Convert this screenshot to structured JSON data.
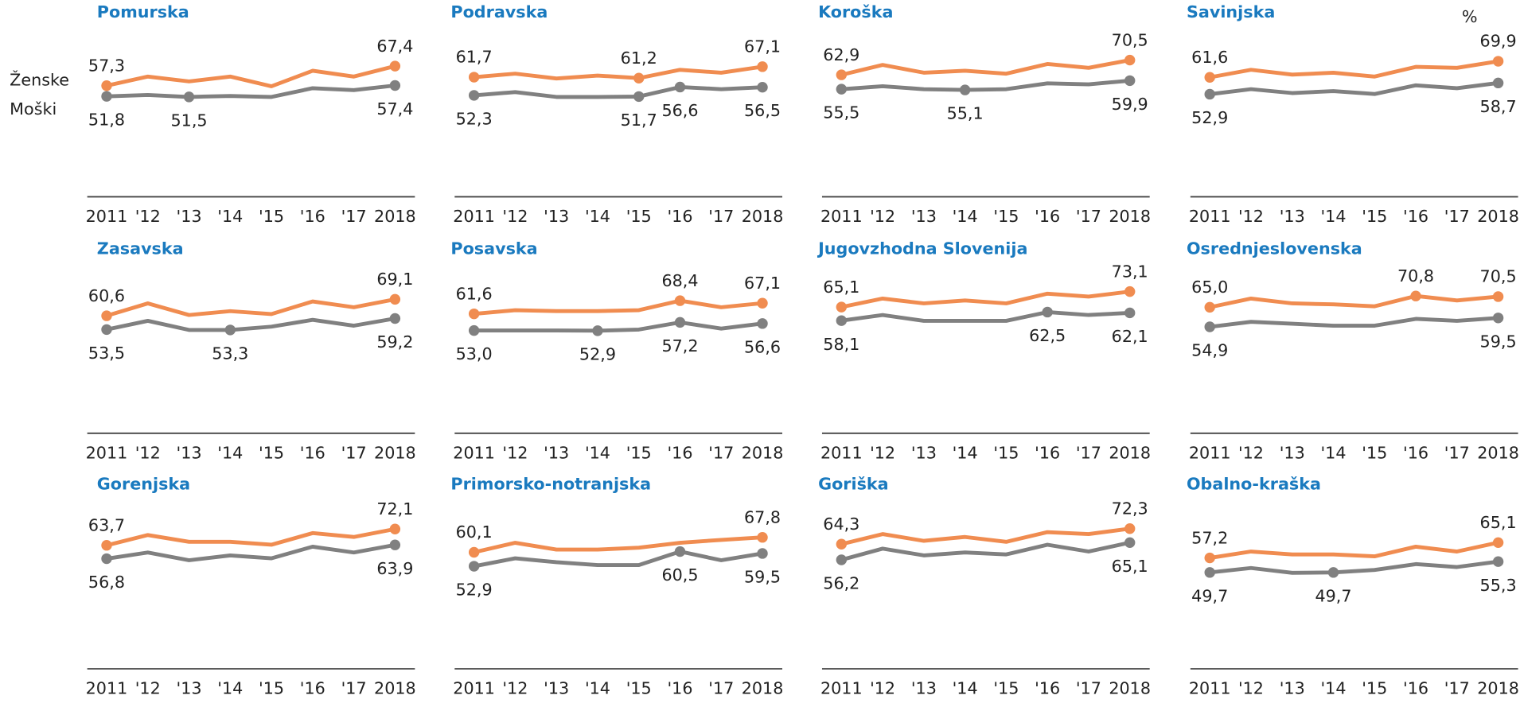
{
  "unit": "%",
  "chart_data": [
    {
      "type": "line",
      "title": "Pomurska",
      "categories": [
        "2011",
        "'12",
        "'13",
        "'14",
        "'15",
        "'16",
        "'17",
        "2018"
      ],
      "ylim": [
        0,
        90
      ],
      "series": [
        {
          "name": "Ženske",
          "color": "#f08c50",
          "values": [
            57.3,
            62,
            59.5,
            62,
            57,
            65,
            62,
            67.4
          ],
          "value_labels": [
            "57,3",
            null,
            null,
            null,
            null,
            null,
            null,
            "67,4"
          ]
        },
        {
          "name": "Moški",
          "color": "#808080",
          "values": [
            51.8,
            52.5,
            51.5,
            52,
            51.5,
            56,
            55,
            57.4
          ],
          "value_labels": [
            "51,8",
            null,
            "51,5",
            null,
            null,
            null,
            null,
            "57,4"
          ]
        }
      ]
    },
    {
      "type": "line",
      "title": "Podravska",
      "categories": [
        "2011",
        "'12",
        "'13",
        "'14",
        "'15",
        "'16",
        "'17",
        "2018"
      ],
      "ylim": [
        0,
        90
      ],
      "series": [
        {
          "color": "#f08c50",
          "values": [
            61.7,
            63.5,
            61,
            62.5,
            61.2,
            65.5,
            64,
            67.1
          ],
          "value_labels": [
            "61,7",
            null,
            null,
            null,
            "61,2",
            null,
            null,
            "67,1"
          ]
        },
        {
          "color": "#808080",
          "values": [
            52.3,
            54,
            51.5,
            51.5,
            51.7,
            56.6,
            55.5,
            56.5
          ],
          "value_labels": [
            "52,3",
            null,
            null,
            null,
            "51,7",
            "56,6",
            null,
            "56,5"
          ]
        }
      ]
    },
    {
      "type": "line",
      "title": "Koroška",
      "categories": [
        "2011",
        "'12",
        "'13",
        "'14",
        "'15",
        "'16",
        "'17",
        "2018"
      ],
      "ylim": [
        0,
        90
      ],
      "series": [
        {
          "color": "#f08c50",
          "values": [
            62.9,
            68,
            64,
            65,
            63.5,
            68.5,
            66.5,
            70.5
          ],
          "value_labels": [
            "62,9",
            null,
            null,
            null,
            null,
            null,
            null,
            "70,5"
          ]
        },
        {
          "color": "#808080",
          "values": [
            55.5,
            57,
            55.5,
            55.1,
            55.5,
            58.5,
            58,
            59.9
          ],
          "value_labels": [
            "55,5",
            null,
            null,
            "55,1",
            null,
            null,
            null,
            "59,9"
          ]
        }
      ]
    },
    {
      "type": "line",
      "title": "Savinjska",
      "categories": [
        "2011",
        "'12",
        "'13",
        "'14",
        "'15",
        "'16",
        "'17",
        "2018"
      ],
      "ylim": [
        0,
        90
      ],
      "series": [
        {
          "color": "#f08c50",
          "values": [
            61.6,
            65.5,
            63,
            64,
            62,
            67,
            66.5,
            69.9
          ],
          "value_labels": [
            "61,6",
            null,
            null,
            null,
            null,
            null,
            null,
            "69,9"
          ]
        },
        {
          "color": "#808080",
          "values": [
            52.9,
            55.5,
            53.5,
            54.5,
            53,
            57.5,
            56,
            58.7
          ],
          "value_labels": [
            "52,9",
            null,
            null,
            null,
            null,
            null,
            null,
            "58,7"
          ]
        }
      ]
    },
    {
      "type": "line",
      "title": "Zasavska",
      "categories": [
        "2011",
        "'12",
        "'13",
        "'14",
        "'15",
        "'16",
        "'17",
        "2018"
      ],
      "ylim": [
        0,
        90
      ],
      "series": [
        {
          "color": "#f08c50",
          "values": [
            60.6,
            67,
            61,
            63,
            61.5,
            68,
            65,
            69.1
          ],
          "value_labels": [
            "60,6",
            null,
            null,
            null,
            null,
            null,
            null,
            "69,1"
          ]
        },
        {
          "color": "#808080",
          "values": [
            53.5,
            58,
            53.3,
            53.3,
            55,
            58.5,
            55.5,
            59.2
          ],
          "value_labels": [
            "53,5",
            null,
            null,
            "53,3",
            null,
            null,
            null,
            "59,2"
          ]
        }
      ]
    },
    {
      "type": "line",
      "title": "Posavska",
      "categories": [
        "2011",
        "'12",
        "'13",
        "'14",
        "'15",
        "'16",
        "'17",
        "2018"
      ],
      "ylim": [
        0,
        90
      ],
      "series": [
        {
          "color": "#f08c50",
          "values": [
            61.6,
            63.5,
            63,
            63,
            63.5,
            68.4,
            65,
            67.1
          ],
          "value_labels": [
            "61,6",
            null,
            null,
            null,
            null,
            "68,4",
            null,
            "67,1"
          ]
        },
        {
          "color": "#808080",
          "values": [
            53.0,
            53.0,
            53,
            52.9,
            53.5,
            57.2,
            54,
            56.6
          ],
          "value_labels": [
            "53,0",
            null,
            null,
            "52,9",
            null,
            "57,2",
            null,
            "56,6"
          ]
        }
      ]
    },
    {
      "type": "line",
      "title": "Jugovzhodna  Slovenija",
      "categories": [
        "2011",
        "'12",
        "'13",
        "'14",
        "'15",
        "'16",
        "'17",
        "2018"
      ],
      "ylim": [
        0,
        90
      ],
      "series": [
        {
          "color": "#f08c50",
          "values": [
            65.1,
            69.5,
            67,
            68.5,
            67,
            72,
            70.5,
            73.1
          ],
          "value_labels": [
            "65,1",
            null,
            null,
            null,
            null,
            null,
            null,
            "73,1"
          ]
        },
        {
          "color": "#808080",
          "values": [
            58.1,
            61,
            58,
            58,
            58,
            62.5,
            61,
            62.1
          ],
          "value_labels": [
            "58,1",
            null,
            null,
            null,
            null,
            "62,5",
            null,
            "62,1"
          ]
        }
      ]
    },
    {
      "type": "line",
      "title": "Osrednjeslovenska",
      "categories": [
        "2011",
        "'12",
        "'13",
        "'14",
        "'15",
        "'16",
        "'17",
        "2018"
      ],
      "ylim": [
        0,
        90
      ],
      "series": [
        {
          "color": "#f08c50",
          "values": [
            65.0,
            69.5,
            67,
            66.5,
            65.5,
            70.8,
            68.5,
            70.5
          ],
          "value_labels": [
            "65,0",
            null,
            null,
            null,
            null,
            "70,8",
            null,
            "70,5"
          ]
        },
        {
          "color": "#808080",
          "values": [
            54.9,
            57.5,
            56.5,
            55.5,
            55.5,
            59,
            58,
            59.5
          ],
          "value_labels": [
            "54,9",
            null,
            null,
            null,
            null,
            null,
            null,
            "59,5"
          ]
        }
      ]
    },
    {
      "type": "line",
      "title": "Gorenjska",
      "categories": [
        "2011",
        "'12",
        "'13",
        "'14",
        "'15",
        "'16",
        "'17",
        "2018"
      ],
      "ylim": [
        0,
        90
      ],
      "series": [
        {
          "color": "#f08c50",
          "values": [
            63.7,
            69,
            65.5,
            65.5,
            64,
            70,
            68,
            72.1
          ],
          "value_labels": [
            "63,7",
            null,
            null,
            null,
            null,
            null,
            null,
            "72,1"
          ]
        },
        {
          "color": "#808080",
          "values": [
            56.8,
            60,
            56,
            58.5,
            57,
            63,
            60,
            63.9
          ],
          "value_labels": [
            "56,8",
            null,
            null,
            null,
            null,
            null,
            null,
            "63,9"
          ]
        }
      ]
    },
    {
      "type": "line",
      "title": "Primorsko-notranjska",
      "categories": [
        "2011",
        "'12",
        "'13",
        "'14",
        "'15",
        "'16",
        "'17",
        "2018"
      ],
      "ylim": [
        0,
        90
      ],
      "series": [
        {
          "color": "#f08c50",
          "values": [
            60.1,
            65,
            61.5,
            61.5,
            62.5,
            65,
            66.5,
            67.8
          ],
          "value_labels": [
            "60,1",
            null,
            null,
            null,
            null,
            null,
            null,
            "67,8"
          ]
        },
        {
          "color": "#808080",
          "values": [
            52.9,
            57,
            55,
            53.5,
            53.5,
            60.5,
            56,
            59.5
          ],
          "value_labels": [
            "52,9",
            null,
            null,
            null,
            null,
            "60,5",
            null,
            "59,5"
          ]
        }
      ]
    },
    {
      "type": "line",
      "title": "Goriška",
      "categories": [
        "2011",
        "'12",
        "'13",
        "'14",
        "'15",
        "'16",
        "'17",
        "2018"
      ],
      "ylim": [
        0,
        90
      ],
      "series": [
        {
          "color": "#f08c50",
          "values": [
            64.3,
            69.5,
            66,
            68,
            65.5,
            70.5,
            69.5,
            72.3
          ],
          "value_labels": [
            "64,3",
            null,
            null,
            null,
            null,
            null,
            null,
            "72,3"
          ]
        },
        {
          "color": "#808080",
          "values": [
            56.2,
            62,
            58.5,
            60,
            59,
            64,
            60.5,
            65.1
          ],
          "value_labels": [
            "56,2",
            null,
            null,
            null,
            null,
            null,
            null,
            "65,1"
          ]
        }
      ]
    },
    {
      "type": "line",
      "title": "Obalno-kraška",
      "categories": [
        "2011",
        "'12",
        "'13",
        "'14",
        "'15",
        "'16",
        "'17",
        "2018"
      ],
      "ylim": [
        0,
        90
      ],
      "series": [
        {
          "color": "#f08c50",
          "values": [
            57.2,
            60.5,
            59,
            59,
            58,
            63,
            60.5,
            65.1
          ],
          "value_labels": [
            "57,2",
            null,
            null,
            null,
            null,
            null,
            null,
            "65,1"
          ]
        },
        {
          "color": "#808080",
          "values": [
            49.7,
            52,
            49.5,
            49.7,
            51,
            54,
            52.5,
            55.3
          ],
          "value_labels": [
            "49,7",
            null,
            null,
            "49,7",
            null,
            null,
            null,
            "55,3"
          ]
        }
      ]
    }
  ]
}
